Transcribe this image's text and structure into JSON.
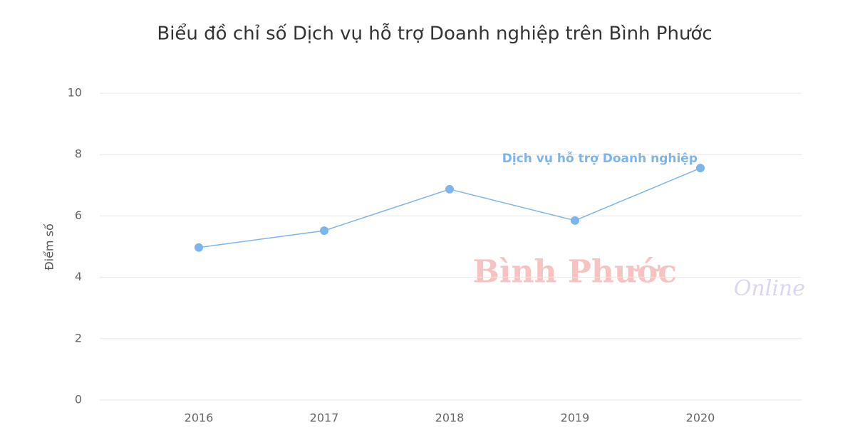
{
  "chart_data": {
    "type": "line",
    "title": "Biểu đồ chỉ số Dịch vụ hỗ trợ Doanh nghiệp trên Bình Phước",
    "y_label": "Điểm số",
    "categories": [
      "2016",
      "2017",
      "2018",
      "2019",
      "2020"
    ],
    "series": [
      {
        "name": "Dịch vụ hỗ trợ Doanh nghiệp",
        "color": "#7cb5ec",
        "values": [
          4.97,
          5.52,
          6.87,
          5.85,
          7.56
        ]
      }
    ],
    "ylim": [
      0,
      10
    ],
    "yticks": [
      0,
      2,
      4,
      6,
      8,
      10
    ],
    "grid": true,
    "watermark": [
      "Bình Phước",
      "Online"
    ]
  }
}
